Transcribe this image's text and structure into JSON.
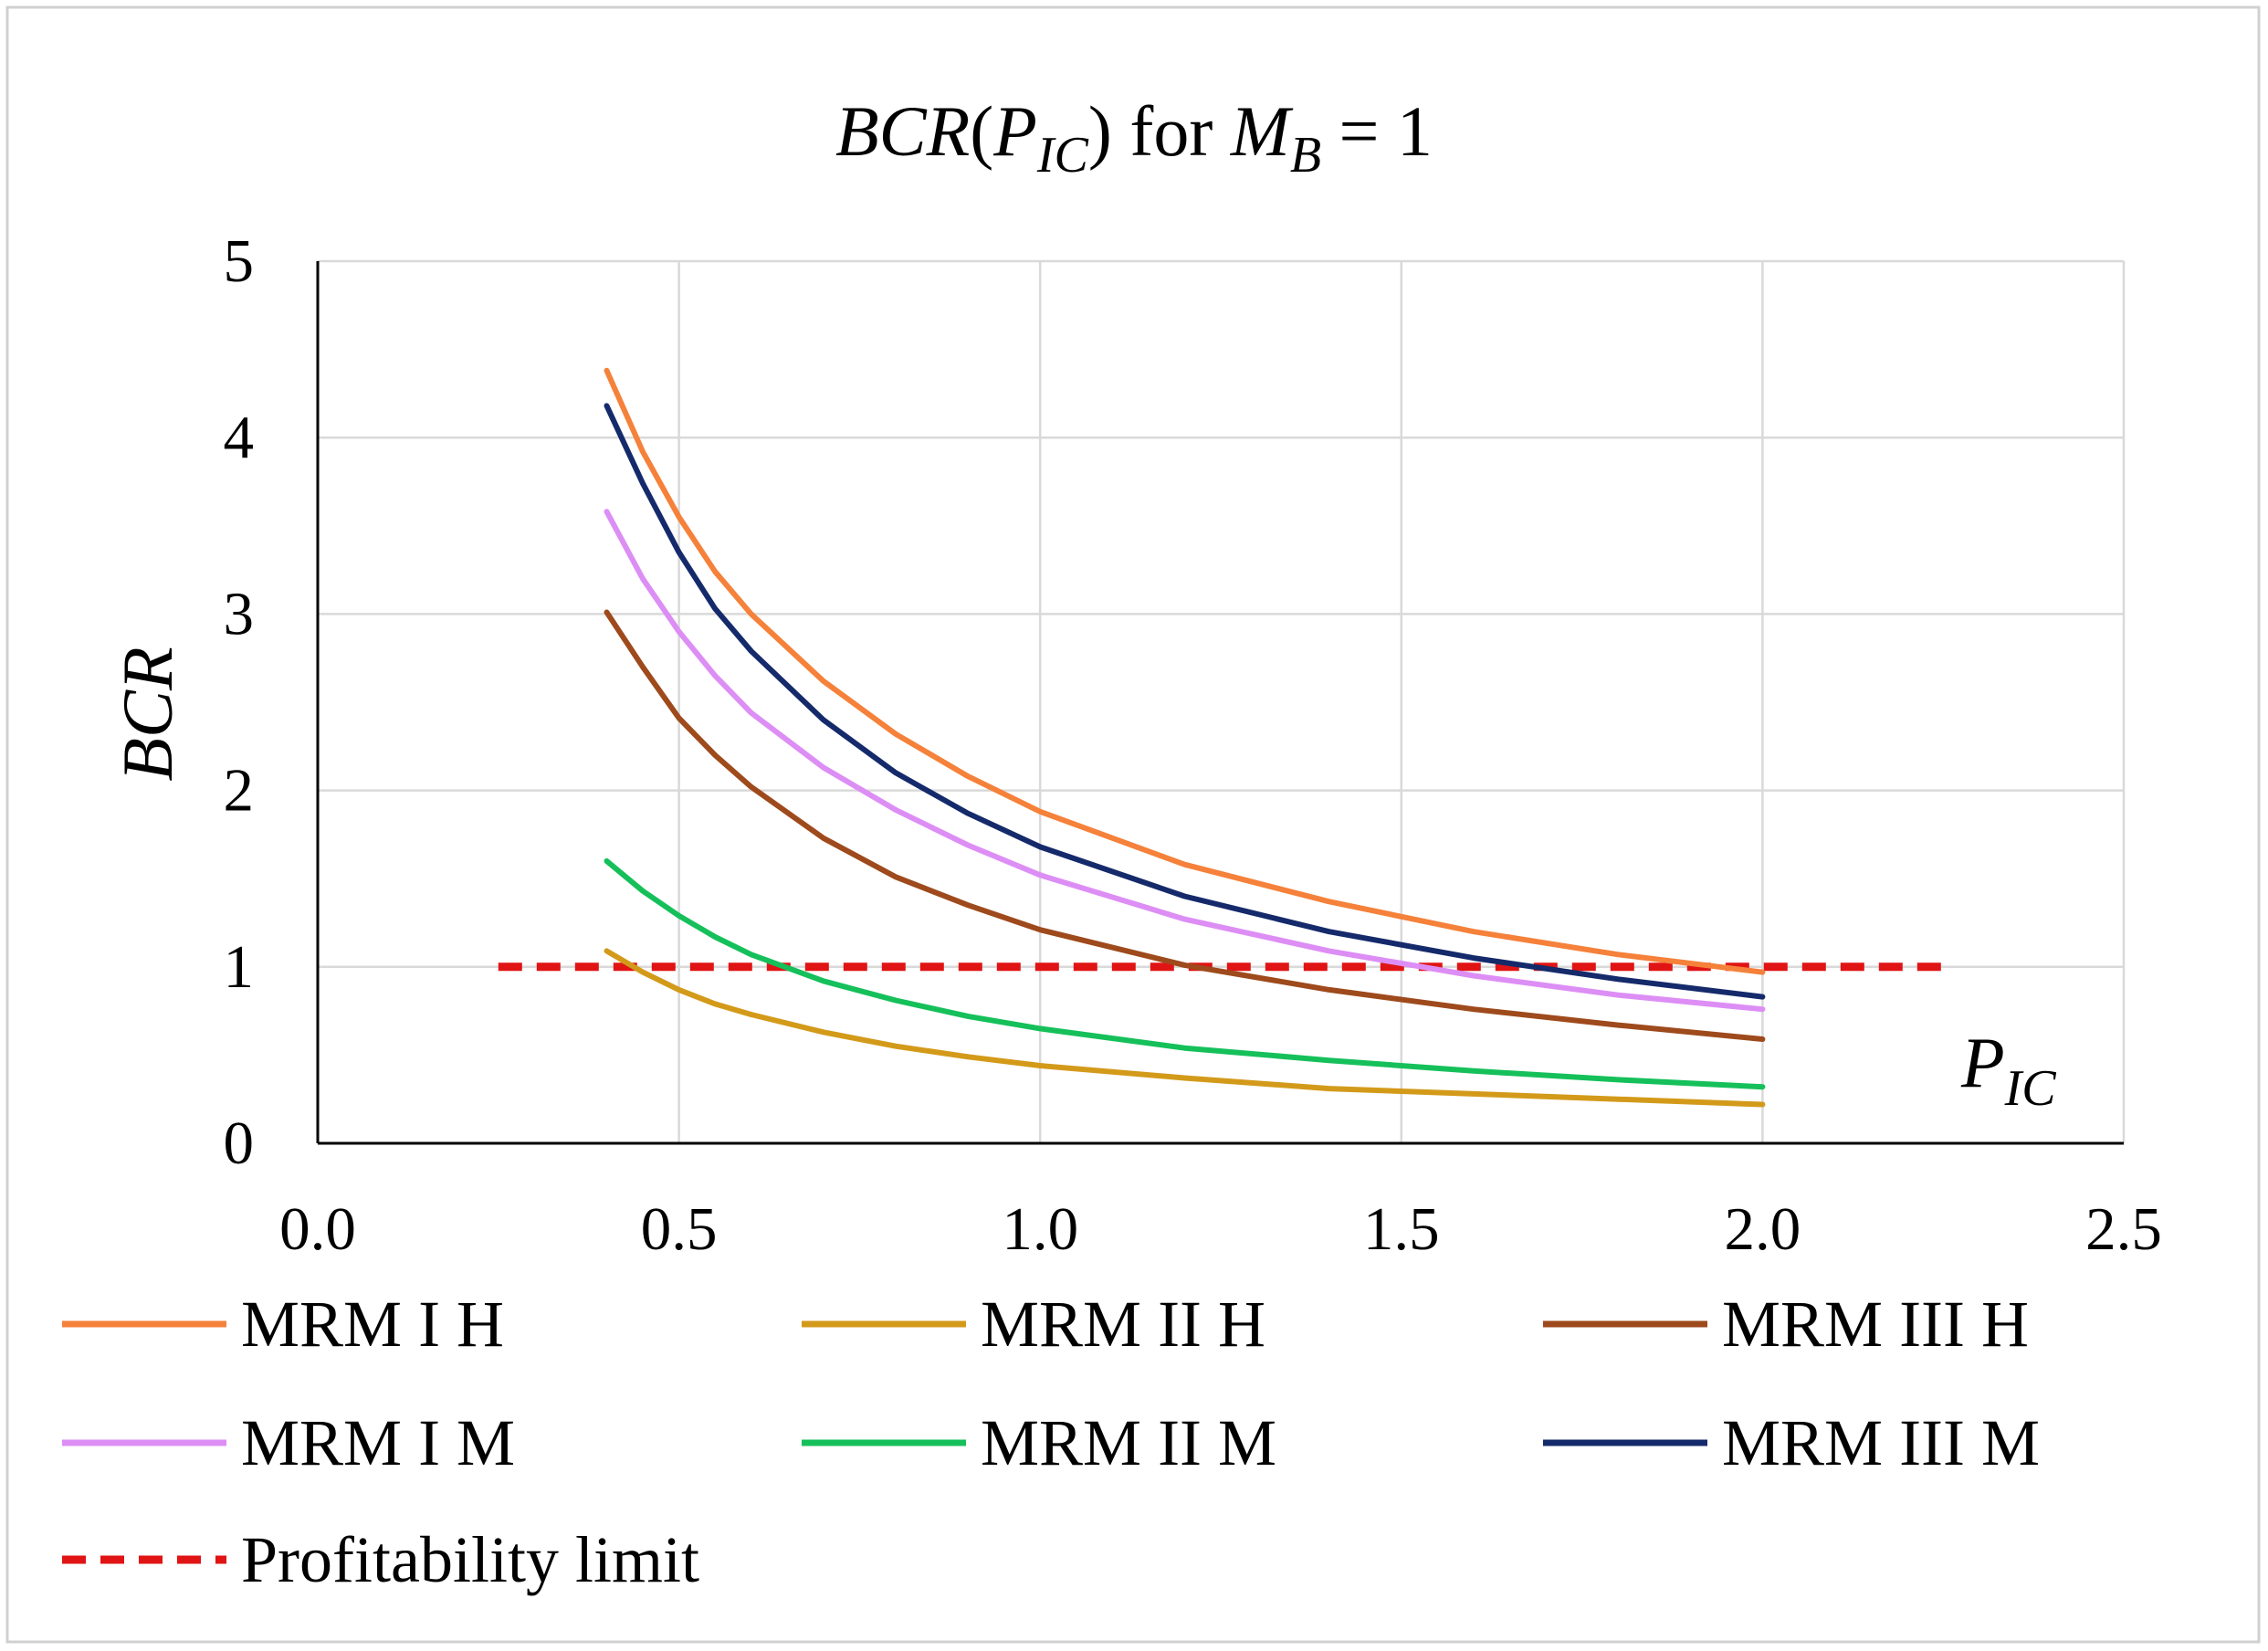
{
  "chart_data": {
    "type": "line",
    "title": {
      "prefix_italic": "BCR",
      "open": "(",
      "var_main": "P",
      "var_sub": "IC",
      "close": ")",
      "middle": " for ",
      "m_main": "M",
      "m_sub": "B",
      "suffix": " = 1"
    },
    "xlabel": {
      "main": "P",
      "sub": "IC"
    },
    "ylabel": "BCR",
    "xlim": [
      0.0,
      2.5
    ],
    "ylim": [
      0,
      5
    ],
    "x_ticks": [
      0.0,
      0.5,
      1.0,
      1.5,
      2.0,
      2.5
    ],
    "x_tick_labels": [
      "0.0",
      "0.5",
      "1.0",
      "1.5",
      "2.0",
      "2.5"
    ],
    "y_ticks": [
      0,
      1,
      2,
      3,
      4,
      5
    ],
    "y_tick_labels": [
      "0",
      "1",
      "2",
      "3",
      "4",
      "5"
    ],
    "grid": true,
    "legend_position": "bottom",
    "x": [
      0.4,
      0.45,
      0.5,
      0.55,
      0.6,
      0.7,
      0.8,
      0.9,
      1.0,
      1.2,
      1.4,
      1.6,
      1.8,
      2.0
    ],
    "series": [
      {
        "name": "MRM I H",
        "color": "#f5813a",
        "style": "solid",
        "values": [
          4.38,
          3.92,
          3.55,
          3.24,
          3.0,
          2.62,
          2.32,
          2.08,
          1.88,
          1.58,
          1.37,
          1.2,
          1.07,
          0.97
        ]
      },
      {
        "name": "MRM II H",
        "color": "#d39a1a",
        "style": "solid",
        "values": [
          1.09,
          0.97,
          0.87,
          0.79,
          0.73,
          0.63,
          0.55,
          0.49,
          0.44,
          0.37,
          0.31,
          0.28,
          0.25,
          0.22
        ]
      },
      {
        "name": "MRM III H",
        "color": "#9e4a1c",
        "style": "solid",
        "values": [
          3.01,
          2.7,
          2.41,
          2.2,
          2.02,
          1.73,
          1.51,
          1.35,
          1.21,
          1.01,
          0.87,
          0.76,
          0.67,
          0.59
        ]
      },
      {
        "name": "MRM I M",
        "color": "#dd8ef5",
        "style": "solid",
        "values": [
          3.58,
          3.2,
          2.9,
          2.65,
          2.44,
          2.13,
          1.89,
          1.69,
          1.52,
          1.27,
          1.09,
          0.95,
          0.84,
          0.76
        ]
      },
      {
        "name": "MRM II M",
        "color": "#15c05a",
        "style": "solid",
        "values": [
          1.6,
          1.43,
          1.29,
          1.17,
          1.07,
          0.92,
          0.81,
          0.72,
          0.65,
          0.54,
          0.47,
          0.41,
          0.36,
          0.32
        ]
      },
      {
        "name": "MRM III M",
        "color": "#152a6b",
        "style": "solid",
        "values": [
          4.18,
          3.74,
          3.35,
          3.03,
          2.79,
          2.4,
          2.1,
          1.87,
          1.68,
          1.4,
          1.2,
          1.05,
          0.93,
          0.83
        ]
      },
      {
        "name": "Profitability limit",
        "color": "#e01414",
        "style": "dashed",
        "x": [
          0.25,
          2.25
        ],
        "values": [
          1.0,
          1.0
        ]
      }
    ]
  }
}
